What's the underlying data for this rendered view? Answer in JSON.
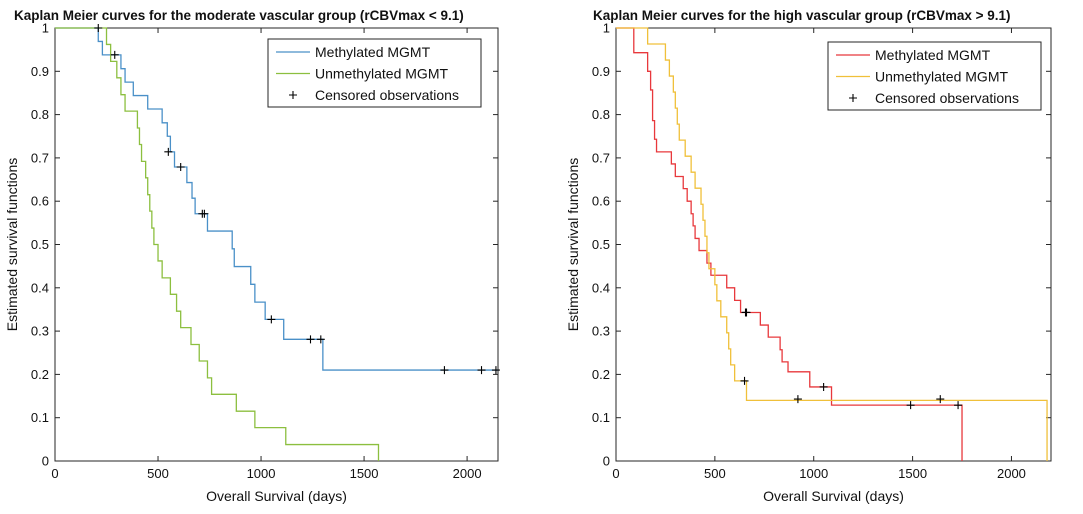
{
  "chart_data": [
    {
      "type": "line",
      "title": "Kaplan Meier curves for the moderate vascular group (rCBVmax < 9.1)",
      "xlabel": "Overall Survival (days)",
      "ylabel": "Estimated survival functions",
      "xlim": [
        0,
        2150
      ],
      "ylim": [
        0,
        1
      ],
      "xticks": [
        0,
        500,
        1000,
        1500,
        2000
      ],
      "yticks": [
        0,
        0.1,
        0.2,
        0.3,
        0.4,
        0.5,
        0.6,
        0.7,
        0.8,
        0.9,
        1
      ],
      "ytick_labels": [
        "0",
        "0.1",
        "0.2",
        "0.3",
        "0.4",
        "0.5",
        "0.6",
        "0.7",
        "0.8",
        "0.9",
        "1"
      ],
      "legend_position": "top-right",
      "legend": [
        "Methylated MGMT",
        "Unmethylated MGMT",
        "Censored observations"
      ],
      "series": [
        {
          "name": "Methylated MGMT",
          "color": "#4a90c8",
          "steps": [
            [
              0,
              1
            ],
            [
              200,
              1
            ],
            [
              210,
              0.969
            ],
            [
              230,
              0.938
            ],
            [
              300,
              0.938
            ],
            [
              320,
              0.906
            ],
            [
              340,
              0.875
            ],
            [
              380,
              0.844
            ],
            [
              450,
              0.813
            ],
            [
              520,
              0.781
            ],
            [
              545,
              0.75
            ],
            [
              560,
              0.714
            ],
            [
              580,
              0.679
            ],
            [
              640,
              0.643
            ],
            [
              665,
              0.607
            ],
            [
              680,
              0.571
            ],
            [
              740,
              0.531
            ],
            [
              860,
              0.49
            ],
            [
              870,
              0.449
            ],
            [
              950,
              0.408
            ],
            [
              970,
              0.367
            ],
            [
              1020,
              0.327
            ],
            [
              1110,
              0.281
            ],
            [
              1300,
              0.21
            ],
            [
              2150,
              0.21
            ]
          ],
          "censored": [
            [
              210,
              1
            ],
            [
              290,
              0.938
            ],
            [
              550,
              0.714
            ],
            [
              610,
              0.679
            ],
            [
              715,
              0.571
            ],
            [
              725,
              0.571
            ],
            [
              1050,
              0.327
            ],
            [
              1240,
              0.281
            ],
            [
              1290,
              0.281
            ],
            [
              1890,
              0.21
            ],
            [
              2070,
              0.21
            ],
            [
              2140,
              0.21
            ]
          ]
        },
        {
          "name": "Unmethylated MGMT",
          "color": "#8cbf3f",
          "steps": [
            [
              0,
              1
            ],
            [
              240,
              1
            ],
            [
              250,
              0.962
            ],
            [
              270,
              0.923
            ],
            [
              300,
              0.885
            ],
            [
              320,
              0.846
            ],
            [
              340,
              0.808
            ],
            [
              400,
              0.769
            ],
            [
              410,
              0.731
            ],
            [
              420,
              0.692
            ],
            [
              440,
              0.654
            ],
            [
              450,
              0.615
            ],
            [
              460,
              0.577
            ],
            [
              470,
              0.538
            ],
            [
              480,
              0.5
            ],
            [
              500,
              0.462
            ],
            [
              520,
              0.423
            ],
            [
              560,
              0.385
            ],
            [
              590,
              0.346
            ],
            [
              610,
              0.308
            ],
            [
              660,
              0.269
            ],
            [
              700,
              0.231
            ],
            [
              740,
              0.192
            ],
            [
              760,
              0.154
            ],
            [
              880,
              0.115
            ],
            [
              970,
              0.077
            ],
            [
              1120,
              0.038
            ],
            [
              1570,
              0.038
            ],
            [
              1570,
              0
            ]
          ],
          "censored": []
        }
      ],
      "censored_marker": "+",
      "censored_color": "#000000"
    },
    {
      "type": "line",
      "title": "Kaplan Meier curves for the high vascular group (rCBVmax > 9.1)",
      "xlabel": "Overall Survival (days)",
      "ylabel": "Estimated survival functions",
      "xlim": [
        0,
        2200
      ],
      "ylim": [
        0,
        1
      ],
      "xticks": [
        0,
        500,
        1000,
        1500,
        2000
      ],
      "yticks": [
        0,
        0.1,
        0.2,
        0.3,
        0.4,
        0.5,
        0.6,
        0.7,
        0.8,
        0.9,
        1
      ],
      "ytick_labels": [
        "0",
        "0.1",
        "0.2",
        "0.3",
        "0.4",
        "0.5",
        "0.6",
        "0.7",
        "0.8",
        "0.9",
        "1"
      ],
      "legend_position": "top-right",
      "legend": [
        "Methylated MGMT",
        "Unmethylated MGMT",
        "Censored observations"
      ],
      "series": [
        {
          "name": "Methylated MGMT",
          "color": "#e8383c",
          "steps": [
            [
              0,
              1
            ],
            [
              80,
              1
            ],
            [
              90,
              0.943
            ],
            [
              160,
              0.9
            ],
            [
              175,
              0.857
            ],
            [
              185,
              0.786
            ],
            [
              195,
              0.743
            ],
            [
              205,
              0.714
            ],
            [
              280,
              0.686
            ],
            [
              300,
              0.657
            ],
            [
              340,
              0.629
            ],
            [
              360,
              0.6
            ],
            [
              380,
              0.571
            ],
            [
              390,
              0.543
            ],
            [
              400,
              0.514
            ],
            [
              420,
              0.486
            ],
            [
              460,
              0.457
            ],
            [
              480,
              0.429
            ],
            [
              560,
              0.4
            ],
            [
              600,
              0.371
            ],
            [
              630,
              0.343
            ],
            [
              730,
              0.314
            ],
            [
              770,
              0.286
            ],
            [
              830,
              0.257
            ],
            [
              840,
              0.229
            ],
            [
              870,
              0.206
            ],
            [
              980,
              0.171
            ],
            [
              1090,
              0.129
            ],
            [
              1750,
              0.129
            ],
            [
              1750,
              0
            ]
          ],
          "censored": [
            [
              655,
              0.343
            ],
            [
              660,
              0.343
            ],
            [
              920,
              0.143
            ],
            [
              1050,
              0.171
            ],
            [
              1490,
              0.129
            ],
            [
              1640,
              0.143
            ],
            [
              1730,
              0.129
            ]
          ]
        },
        {
          "name": "Unmethylated MGMT",
          "color": "#f0c03a",
          "steps": [
            [
              0,
              1
            ],
            [
              150,
              1
            ],
            [
              160,
              0.963
            ],
            [
              250,
              0.926
            ],
            [
              270,
              0.889
            ],
            [
              290,
              0.852
            ],
            [
              300,
              0.815
            ],
            [
              310,
              0.778
            ],
            [
              320,
              0.741
            ],
            [
              350,
              0.704
            ],
            [
              380,
              0.667
            ],
            [
              400,
              0.63
            ],
            [
              430,
              0.593
            ],
            [
              440,
              0.556
            ],
            [
              450,
              0.519
            ],
            [
              460,
              0.481
            ],
            [
              470,
              0.444
            ],
            [
              500,
              0.407
            ],
            [
              510,
              0.37
            ],
            [
              530,
              0.333
            ],
            [
              560,
              0.296
            ],
            [
              570,
              0.259
            ],
            [
              580,
              0.222
            ],
            [
              600,
              0.185
            ],
            [
              660,
              0.14
            ],
            [
              2180,
              0.14
            ],
            [
              2180,
              0
            ]
          ],
          "censored": [
            [
              650,
              0.185
            ]
          ]
        }
      ],
      "censored_marker": "+",
      "censored_color": "#000000"
    }
  ]
}
